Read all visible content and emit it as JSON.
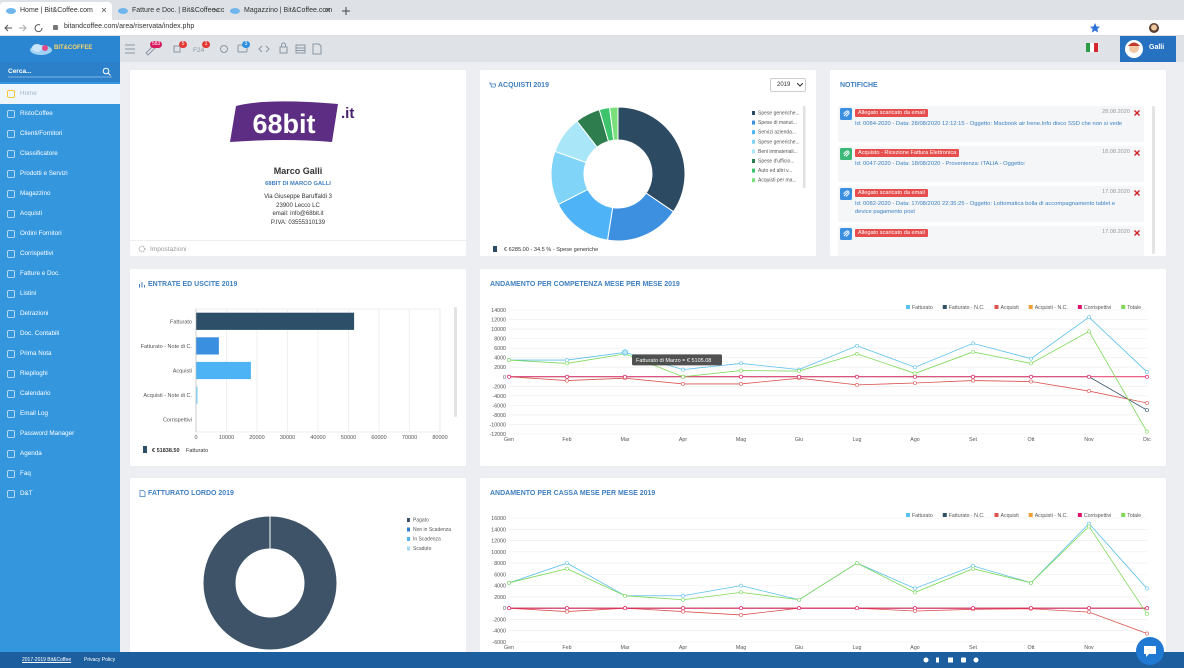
{
  "browser": {
    "tabs": [
      "Home | Bit&Coffee.com",
      "Fatture e Doc. | Bit&Coffee.co",
      "Magazzino | Bit&Coffee.com"
    ],
    "url": "bitandcoffee.com/area/riservata/index.php"
  },
  "app": {
    "logo": "BIT&COFFEE",
    "search": "Cerca...",
    "f24_label": "F24",
    "badges": [
      {
        "value": 583,
        "color": "#d81b60"
      },
      {
        "value": 5,
        "color": "#e53935"
      },
      {
        "value": 1,
        "color": "#e53935"
      },
      {
        "value": 3,
        "color": "#2f8fe0"
      }
    ],
    "user": "Galli"
  },
  "sidebar": {
    "menu": [
      "Home",
      "RistoCoffee",
      "Clienti/Fornitori",
      "Classificatore",
      "Prodotti e Servizi",
      "Magazzino",
      "Acquisti",
      "Ordini Fornitori",
      "Corrispettivi",
      "Fatture e Doc.",
      "Listini",
      "Detrazioni",
      "Doc. Contabili",
      "Prima Nota",
      "Riepiloghi",
      "Calendario",
      "Email Log",
      "Password Manager",
      "Agenda",
      "Faq",
      "D&T"
    ],
    "active": 0
  },
  "profile": {
    "logo_main": "68bit",
    "logo_suffix": ".it",
    "name": "Marco Galli",
    "company": "68BIT DI MARCO GALLI",
    "address": [
      "Via Giuseppe Baruffaldi 3",
      "23900 Lecco LC",
      "email: info@68bit.it",
      "P.IVA: 03555310139"
    ],
    "settings": "Impostazioni"
  },
  "notifications": {
    "title": "NOTIFICHE",
    "items": [
      {
        "tag": "Allegato scaricato da email",
        "date": "28.08.2020",
        "icon_color": "#3b8fe0",
        "text": "Id: 0084-2020 - Data: 28/08/2020 12:12:15 - Oggetto: Macbook air Irene.Info disco SSD che non si vede"
      },
      {
        "tag": "Acquisto - Ricezione Fattura Elettronica",
        "date": "18.08.2020",
        "icon_color": "#3cb878",
        "text": "Id: 0047-2020 - Data: 18/08/2020 - Provenienza: ITALIA - Oggetto:"
      },
      {
        "tag": "Allegato scaricato da email",
        "date": "17.08.2020",
        "icon_color": "#3b8fe0",
        "text": "Id: 0082-2020 - Data: 17/08/2020 22:35:25 - Oggetto: Lottomatica bolla di accompagnamento tablet e device pagamento post"
      },
      {
        "tag": "Allegato scaricato da email",
        "date": "17.08.2020",
        "icon_color": "#3b8fe0",
        "text": ""
      }
    ]
  },
  "acquisti": {
    "type": "donut",
    "title": "ACQUISTI 2019",
    "year": 2019,
    "categories": [
      "Spese generiche...",
      "Spese di manut...",
      "Servizi azienda...",
      "Spese generiche...",
      "Beni immateriali...",
      "Spese d'ufficio...",
      "Auto ed altri v...",
      "Acquisti per ma..."
    ],
    "values": [
      34.5,
      18,
      15,
      13,
      9,
      6,
      2.5,
      2
    ],
    "colors": [
      "#2c4a62",
      "#3d8fe0",
      "#4fb3f7",
      "#80d4f8",
      "#a8e6f8",
      "#2e7d4f",
      "#3ec46d",
      "#7be07b"
    ],
    "footer": "€ 6285.00 - 34.5 % - Spese generiche"
  },
  "entrate": {
    "type": "hbar",
    "title": "ENTRATE ED USCITE 2019",
    "categories": [
      "Fatturato",
      "Fatturato - Note di C.",
      "Acquisti",
      "Acquisti - Note di C.",
      "Corrispettivi"
    ],
    "values": [
      51838.5,
      7500,
      18000,
      500,
      0
    ],
    "colors": [
      "#2d4f68",
      "#3b8fe0",
      "#4db3f5",
      "#80d4f8",
      "#a8e6f8"
    ],
    "xlim": [
      0,
      80000
    ],
    "xticks": [
      0,
      10000,
      20000,
      30000,
      40000,
      50000,
      60000,
      70000,
      80000
    ],
    "legend_value_label": "€ 51838.50"
  },
  "competenza": {
    "type": "line",
    "title": "ANDAMENTO PER COMPETENZA MESE PER MESE 2019",
    "categories": [
      "Gen",
      "Feb",
      "Mar",
      "Apr",
      "Mag",
      "Giu",
      "Lug",
      "Ago",
      "Set",
      "Ott",
      "Nov",
      "Dic"
    ],
    "ylim": [
      -12000,
      14000
    ],
    "yticks": [
      -12000,
      -10000,
      -8000,
      -6000,
      -4000,
      -2000,
      0,
      2000,
      4000,
      6000,
      8000,
      10000,
      12000,
      14000
    ],
    "series": [
      {
        "name": "Fatturato",
        "color": "#5bc0eb",
        "values": [
          3500,
          3500,
          5105.08,
          1500,
          2800,
          1500,
          6500,
          2000,
          7000,
          3800,
          12500,
          1000
        ]
      },
      {
        "name": "Fatturato - N.C.",
        "color": "#2d4f68",
        "values": [
          0,
          0,
          0,
          0,
          0,
          0,
          0,
          0,
          0,
          0,
          0,
          -7000
        ]
      },
      {
        "name": "Acquisti",
        "color": "#d9534f",
        "values": [
          0,
          -800,
          -300,
          -1500,
          -1500,
          -300,
          -1700,
          -1300,
          -800,
          -1000,
          -3000,
          -5500
        ]
      },
      {
        "name": "Acquisti - N.C.",
        "color": "#f0a030",
        "values": [
          0,
          0,
          0,
          0,
          0,
          0,
          0,
          0,
          0,
          0,
          0,
          0
        ]
      },
      {
        "name": "Corrispettivi",
        "color": "#e0106a",
        "values": [
          0,
          0,
          0,
          0,
          0,
          0,
          0,
          0,
          0,
          0,
          0,
          0
        ]
      },
      {
        "name": "Totale",
        "color": "#7ed957",
        "values": [
          3500,
          2800,
          4800,
          0,
          1300,
          1200,
          4800,
          700,
          5200,
          2800,
          9500,
          -11500
        ]
      }
    ],
    "tooltip": "Fatturato di Marzo = € 5105.08"
  },
  "fatturato": {
    "type": "donut",
    "title": "FATTURATO LORDO 2019",
    "categories": [
      "Pagato",
      "Non in Scadenza",
      "In Scadenza",
      "Scaduto"
    ],
    "values": [
      100,
      0,
      0,
      0
    ],
    "colors": [
      "#3e5367",
      "#2f7fd0",
      "#4fb3f7",
      "#a8d8f0"
    ]
  },
  "cassa": {
    "type": "line",
    "title": "ANDAMENTO PER CASSA MESE PER MESE 2019",
    "categories": [
      "Gen",
      "Feb",
      "Mar",
      "Apr",
      "Mag",
      "Giu",
      "Lug",
      "Ago",
      "Set",
      "Ott",
      "Nov",
      "Dic"
    ],
    "ylim": [
      -6000,
      16000
    ],
    "yticks": [
      -6000,
      -4000,
      -2000,
      0,
      2000,
      4000,
      6000,
      8000,
      10000,
      12000,
      14000,
      16000
    ],
    "series": [
      {
        "name": "Fatturato",
        "color": "#5bc0eb",
        "values": [
          4500,
          8000,
          2200,
          2200,
          4000,
          1500,
          8000,
          3500,
          7500,
          4500,
          15000,
          3500
        ]
      },
      {
        "name": "Fatturato - N.C.",
        "color": "#2d4f68",
        "values": [
          0,
          0,
          0,
          0,
          0,
          0,
          0,
          0,
          0,
          0,
          0,
          0
        ]
      },
      {
        "name": "Acquisti",
        "color": "#d9534f",
        "values": [
          0,
          -600,
          0,
          -600,
          -1200,
          0,
          0,
          -500,
          -200,
          -100,
          -700,
          -4500
        ]
      },
      {
        "name": "Acquisti - N.C.",
        "color": "#f0a030",
        "values": [
          0,
          0,
          0,
          0,
          0,
          0,
          0,
          0,
          0,
          0,
          0,
          0
        ]
      },
      {
        "name": "Corrispettivi",
        "color": "#e0106a",
        "values": [
          0,
          0,
          0,
          0,
          0,
          0,
          0,
          0,
          0,
          0,
          0,
          0
        ]
      },
      {
        "name": "Totale",
        "color": "#7ed957",
        "values": [
          4500,
          7000,
          2200,
          1500,
          2800,
          1500,
          8000,
          2800,
          7000,
          4500,
          14500,
          -1000
        ]
      }
    ]
  },
  "footer": {
    "copyright": "2017-2019 Bit&Coffee",
    "privacy": "Privacy Policy"
  }
}
